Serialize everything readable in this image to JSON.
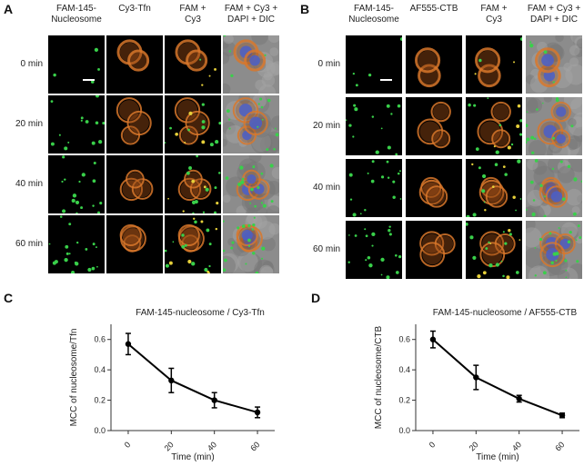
{
  "panels": {
    "A": {
      "letter": "A",
      "columns": [
        {
          "label": "FAM-145-\nNucleosome"
        },
        {
          "label": "Cy3-Tfn"
        },
        {
          "label": "FAM +\nCy3"
        },
        {
          "label": "FAM + Cy3 +\nDAPI + DIC"
        }
      ],
      "rows": [
        "0 min",
        "20 min",
        "40 min",
        "60 min"
      ]
    },
    "B": {
      "letter": "B",
      "columns": [
        {
          "label": "FAM-145-\nNucleosome"
        },
        {
          "label": "AF555-CTB"
        },
        {
          "label": "FAM +\nCy3"
        },
        {
          "label": "FAM + Cy3 +\nDAPI + DIC"
        }
      ],
      "rows": [
        "0 min",
        "20 min",
        "40 min",
        "60 min"
      ]
    },
    "C": {
      "letter": "C"
    },
    "D": {
      "letter": "D"
    }
  },
  "chart_data": [
    {
      "panel": "C",
      "type": "line",
      "title": "FAM-145-nucleosome / Cy3-Tfn",
      "xlabel": "Time (min)",
      "ylabel": "MCC of nucleosome/Tfn",
      "x": [
        0,
        20,
        40,
        60
      ],
      "y": [
        0.57,
        0.33,
        0.2,
        0.12
      ],
      "err": [
        0.07,
        0.08,
        0.05,
        0.035
      ],
      "xticks": [
        "0",
        "20",
        "40",
        "60"
      ],
      "yticks": [
        "0.0",
        "0.2",
        "0.4",
        "0.6"
      ],
      "xlim": [
        -8,
        68
      ],
      "ylim": [
        0,
        0.7
      ],
      "color": "#000000"
    },
    {
      "panel": "D",
      "type": "line",
      "title": "FAM-145-nucleosome / AF555-CTB",
      "xlabel": "Time (min)",
      "ylabel": "MCC of nucleosome/CTB",
      "x": [
        0,
        20,
        40,
        60
      ],
      "y": [
        0.6,
        0.35,
        0.21,
        0.1
      ],
      "err": [
        0.055,
        0.08,
        0.022,
        0.015
      ],
      "xticks": [
        "0",
        "20",
        "40",
        "60"
      ],
      "yticks": [
        "0.0",
        "0.2",
        "0.4",
        "0.6"
      ],
      "xlim": [
        -8,
        68
      ],
      "ylim": [
        0,
        0.7
      ],
      "color": "#000000"
    }
  ]
}
